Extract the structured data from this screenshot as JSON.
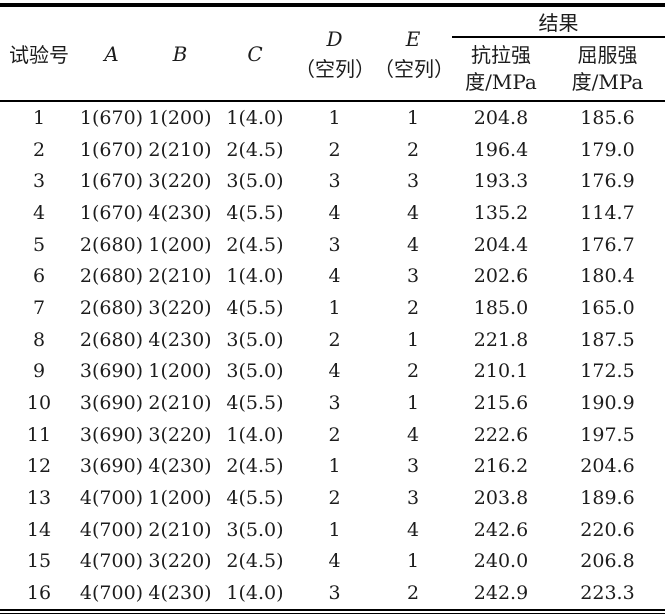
{
  "colors": {
    "text": "#1c1c1c",
    "rule": "#000000",
    "background": "#ffffff"
  },
  "table": {
    "header": {
      "test_no": "试验号",
      "factor_a": "A",
      "factor_b": "B",
      "factor_c": "C",
      "factor_d": "D",
      "factor_d_note": "（空列）",
      "factor_e": "E",
      "factor_e_note": "（空列）",
      "result_group": "结果",
      "tensile_line1": "抗拉强",
      "tensile_line2": "度/MPa",
      "yield_line1": "屈服强",
      "yield_line2": "度/MPa"
    },
    "rows": [
      [
        "1",
        "1(670)",
        "1(200)",
        "1(4.0)",
        "1",
        "1",
        "204.8",
        "185.6"
      ],
      [
        "2",
        "1(670)",
        "2(210)",
        "2(4.5)",
        "2",
        "2",
        "196.4",
        "179.0"
      ],
      [
        "3",
        "1(670)",
        "3(220)",
        "3(5.0)",
        "3",
        "3",
        "193.3",
        "176.9"
      ],
      [
        "4",
        "1(670)",
        "4(230)",
        "4(5.5)",
        "4",
        "4",
        "135.2",
        "114.7"
      ],
      [
        "5",
        "2(680)",
        "1(200)",
        "2(4.5)",
        "3",
        "4",
        "204.4",
        "176.7"
      ],
      [
        "6",
        "2(680)",
        "2(210)",
        "1(4.0)",
        "4",
        "3",
        "202.6",
        "180.4"
      ],
      [
        "7",
        "2(680)",
        "3(220)",
        "4(5.5)",
        "1",
        "2",
        "185.0",
        "165.0"
      ],
      [
        "8",
        "2(680)",
        "4(230)",
        "3(5.0)",
        "2",
        "1",
        "221.8",
        "187.5"
      ],
      [
        "9",
        "3(690)",
        "1(200)",
        "3(5.0)",
        "4",
        "2",
        "210.1",
        "172.5"
      ],
      [
        "10",
        "3(690)",
        "2(210)",
        "4(5.5)",
        "3",
        "1",
        "215.6",
        "190.9"
      ],
      [
        "11",
        "3(690)",
        "3(220)",
        "1(4.0)",
        "2",
        "4",
        "222.6",
        "197.5"
      ],
      [
        "12",
        "3(690)",
        "4(230)",
        "2(4.5)",
        "1",
        "3",
        "216.2",
        "204.6"
      ],
      [
        "13",
        "4(700)",
        "1(200)",
        "4(5.5)",
        "2",
        "3",
        "203.8",
        "189.6"
      ],
      [
        "14",
        "4(700)",
        "2(210)",
        "3(5.0)",
        "1",
        "4",
        "242.6",
        "220.6"
      ],
      [
        "15",
        "4(700)",
        "3(220)",
        "2(4.5)",
        "4",
        "1",
        "240.0",
        "206.8"
      ],
      [
        "16",
        "4(700)",
        "4(230)",
        "1(4.0)",
        "3",
        "2",
        "242.9",
        "223.3"
      ]
    ]
  }
}
